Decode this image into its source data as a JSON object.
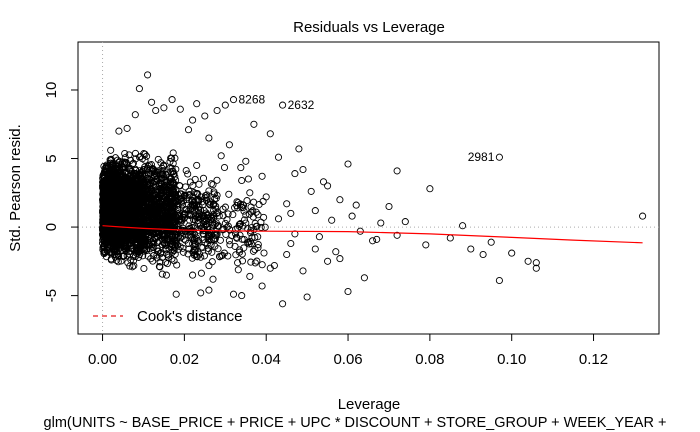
{
  "chart_data": {
    "type": "scatter",
    "title": "Residuals vs Leverage",
    "xlabel": "Leverage",
    "ylabel": "Std. Pearson resid.",
    "subtitle": "glm(UNITS ~ BASE_PRICE + PRICE + UPC * DISCOUNT + STORE_GROUP + WEEK_YEAR +",
    "xlim": [
      -0.006,
      0.136
    ],
    "ylim": [
      -7.8,
      13.5
    ],
    "x_ticks": [
      0.0,
      0.02,
      0.04,
      0.06,
      0.08,
      0.1,
      0.12
    ],
    "x_tick_labels": [
      "0.00",
      "0.02",
      "0.04",
      "0.06",
      "0.08",
      "0.10",
      "0.12"
    ],
    "y_ticks": [
      -5,
      0,
      5,
      10
    ],
    "y_tick_labels": [
      "-5",
      "0",
      "5",
      "10"
    ],
    "legend": {
      "position": "bottom-left",
      "entries": [
        {
          "label": "Cook's distance",
          "color": "#e41a1c",
          "style": "dashed"
        }
      ]
    },
    "reference_lines": {
      "h": 0,
      "v": 0,
      "color": "#aaaaaa",
      "style": "dotted"
    },
    "smooth_color": "#ff0000",
    "smooth": [
      {
        "x": 0.0,
        "y": 0.1
      },
      {
        "x": 0.005,
        "y": 0.0
      },
      {
        "x": 0.01,
        "y": -0.1
      },
      {
        "x": 0.02,
        "y": -0.22
      },
      {
        "x": 0.03,
        "y": -0.28
      },
      {
        "x": 0.04,
        "y": -0.3
      },
      {
        "x": 0.06,
        "y": -0.33
      },
      {
        "x": 0.08,
        "y": -0.5
      },
      {
        "x": 0.1,
        "y": -0.75
      },
      {
        "x": 0.115,
        "y": -0.95
      },
      {
        "x": 0.132,
        "y": -1.15
      }
    ],
    "labeled_points": [
      {
        "x": 0.032,
        "y": 9.3,
        "label": "8268"
      },
      {
        "x": 0.044,
        "y": 8.9,
        "label": "2632"
      },
      {
        "x": 0.097,
        "y": 5.1,
        "label": "2981"
      }
    ],
    "outlier_points": [
      {
        "x": 0.132,
        "y": 0.8
      },
      {
        "x": 0.106,
        "y": -3.0
      },
      {
        "x": 0.106,
        "y": -2.6
      },
      {
        "x": 0.104,
        "y": -2.5
      },
      {
        "x": 0.097,
        "y": -3.9
      },
      {
        "x": 0.093,
        "y": -2.0
      },
      {
        "x": 0.088,
        "y": 0.1
      },
      {
        "x": 0.08,
        "y": 2.8
      },
      {
        "x": 0.079,
        "y": -1.3
      },
      {
        "x": 0.072,
        "y": 4.1
      },
      {
        "x": 0.072,
        "y": -0.6
      },
      {
        "x": 0.07,
        "y": 1.5
      },
      {
        "x": 0.068,
        "y": 0.3
      },
      {
        "x": 0.066,
        "y": -1.0
      },
      {
        "x": 0.064,
        "y": -3.7
      },
      {
        "x": 0.063,
        "y": -0.3
      },
      {
        "x": 0.061,
        "y": 0.8
      },
      {
        "x": 0.06,
        "y": 4.6
      },
      {
        "x": 0.06,
        "y": -4.7
      },
      {
        "x": 0.058,
        "y": 2.0
      },
      {
        "x": 0.057,
        "y": -1.8
      },
      {
        "x": 0.056,
        "y": 0.5
      },
      {
        "x": 0.055,
        "y": -2.5
      },
      {
        "x": 0.054,
        "y": 3.3
      },
      {
        "x": 0.053,
        "y": -0.7
      },
      {
        "x": 0.052,
        "y": 1.2
      },
      {
        "x": 0.051,
        "y": 2.6
      },
      {
        "x": 0.05,
        "y": -5.1
      },
      {
        "x": 0.049,
        "y": -3.2
      },
      {
        "x": 0.048,
        "y": 5.7
      },
      {
        "x": 0.047,
        "y": 3.9
      },
      {
        "x": 0.046,
        "y": -1.2
      },
      {
        "x": 0.045,
        "y": 1.7
      },
      {
        "x": 0.044,
        "y": -5.6
      },
      {
        "x": 0.043,
        "y": 5.1
      },
      {
        "x": 0.042,
        "y": -2.8
      },
      {
        "x": 0.041,
        "y": 6.8
      },
      {
        "x": 0.04,
        "y": 2.2
      },
      {
        "x": 0.039,
        "y": -4.3
      },
      {
        "x": 0.038,
        "y": 0.9
      },
      {
        "x": 0.037,
        "y": 7.5
      },
      {
        "x": 0.036,
        "y": -3.6
      },
      {
        "x": 0.035,
        "y": 4.8
      },
      {
        "x": 0.034,
        "y": -5.0
      },
      {
        "x": 0.033,
        "y": 1.4
      },
      {
        "x": 0.032,
        "y": -4.9
      },
      {
        "x": 0.031,
        "y": 6.0
      },
      {
        "x": 0.03,
        "y": 8.9
      },
      {
        "x": 0.029,
        "y": -2.1
      },
      {
        "x": 0.028,
        "y": 8.5
      },
      {
        "x": 0.027,
        "y": 3.1
      },
      {
        "x": 0.026,
        "y": -4.6
      },
      {
        "x": 0.025,
        "y": 8.1
      },
      {
        "x": 0.024,
        "y": -4.8
      },
      {
        "x": 0.023,
        "y": 9.0
      },
      {
        "x": 0.022,
        "y": 7.8
      },
      {
        "x": 0.021,
        "y": 7.1
      },
      {
        "x": 0.019,
        "y": 8.6
      },
      {
        "x": 0.018,
        "y": -4.9
      },
      {
        "x": 0.017,
        "y": 9.3
      },
      {
        "x": 0.015,
        "y": 8.7
      },
      {
        "x": 0.013,
        "y": 8.5
      },
      {
        "x": 0.012,
        "y": 9.1
      },
      {
        "x": 0.011,
        "y": 11.1
      },
      {
        "x": 0.009,
        "y": 10.1
      },
      {
        "x": 0.008,
        "y": 8.2
      },
      {
        "x": 0.006,
        "y": 7.2
      },
      {
        "x": 0.004,
        "y": 7.0
      },
      {
        "x": 0.002,
        "y": 5.6
      },
      {
        "x": 0.045,
        "y": -2.0
      },
      {
        "x": 0.046,
        "y": 1.0
      },
      {
        "x": 0.047,
        "y": -0.5
      },
      {
        "x": 0.049,
        "y": 4.2
      },
      {
        "x": 0.038,
        "y": -1.5
      },
      {
        "x": 0.036,
        "y": 2.5
      },
      {
        "x": 0.034,
        "y": 3.4
      },
      {
        "x": 0.033,
        "y": -2.6
      },
      {
        "x": 0.031,
        "y": -1.0
      },
      {
        "x": 0.029,
        "y": 5.2
      },
      {
        "x": 0.027,
        "y": -3.8
      },
      {
        "x": 0.026,
        "y": 6.5
      },
      {
        "x": 0.024,
        "y": -2.2
      },
      {
        "x": 0.023,
        "y": 4.5
      },
      {
        "x": 0.022,
        "y": -3.5
      },
      {
        "x": 0.021,
        "y": -1.2
      },
      {
        "x": 0.043,
        "y": 0.6
      },
      {
        "x": 0.041,
        "y": -3.0
      },
      {
        "x": 0.039,
        "y": 3.7
      },
      {
        "x": 0.037,
        "y": -0.2
      },
      {
        "x": 0.035,
        "y": 0.3
      },
      {
        "x": 0.052,
        "y": -1.6
      },
      {
        "x": 0.055,
        "y": 3.0
      },
      {
        "x": 0.058,
        "y": -2.3
      },
      {
        "x": 0.062,
        "y": 1.6
      },
      {
        "x": 0.067,
        "y": -0.9
      },
      {
        "x": 0.074,
        "y": 0.4
      },
      {
        "x": 0.085,
        "y": -0.8
      },
      {
        "x": 0.09,
        "y": -1.6
      },
      {
        "x": 0.095,
        "y": -1.1
      },
      {
        "x": 0.1,
        "y": -1.9
      }
    ],
    "dense_cloud": [
      {
        "x_from": 0.0,
        "x_to": 0.004,
        "y_from": -3.0,
        "y_to": 5.5,
        "n": 1500
      },
      {
        "x_from": 0.003,
        "x_to": 0.01,
        "y_from": -3.5,
        "y_to": 6.0,
        "n": 1300
      },
      {
        "x_from": 0.01,
        "x_to": 0.018,
        "y_from": -3.8,
        "y_to": 6.0,
        "n": 700
      },
      {
        "x_from": 0.018,
        "x_to": 0.028,
        "y_from": -4.2,
        "y_to": 5.5,
        "n": 260
      },
      {
        "x_from": 0.028,
        "x_to": 0.04,
        "y_from": -4.5,
        "y_to": 4.5,
        "n": 100
      }
    ]
  }
}
